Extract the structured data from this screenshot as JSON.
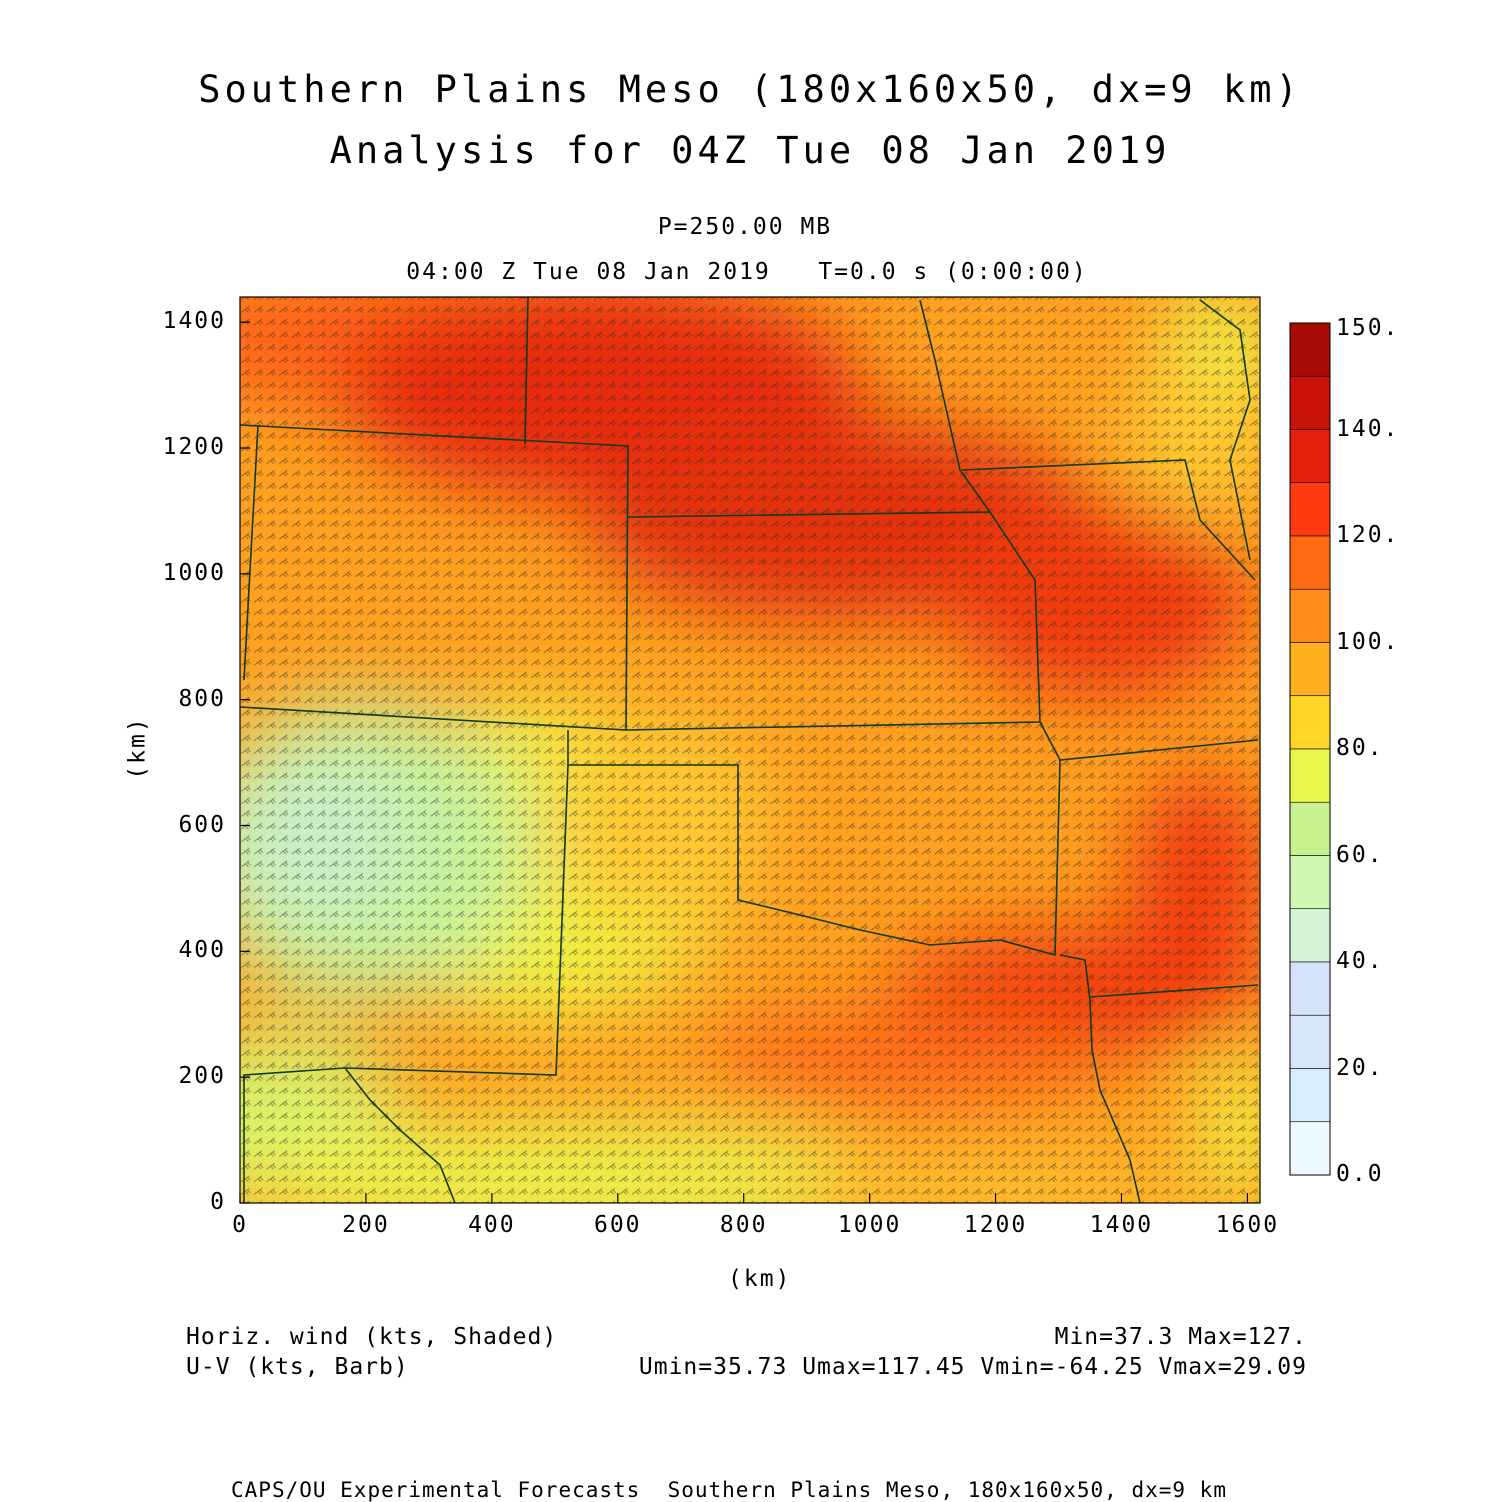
{
  "title": {
    "line1": "Southern Plains Meso (180x160x50, dx=9 km)",
    "line2": "Analysis for 04Z Tue 08 Jan 2019"
  },
  "subtitle": {
    "level": "P=250.00 MB",
    "time": "04:00 Z Tue 08 Jan 2019   T=0.0 s (0:00:00)"
  },
  "axes": {
    "xlabel": "(km)",
    "ylabel": "(km)",
    "x_ticks": [
      "0",
      "200",
      "400",
      "600",
      "800",
      "1000",
      "1200",
      "1400",
      "1600"
    ],
    "y_ticks": [
      "0",
      "200",
      "400",
      "600",
      "800",
      "1000",
      "1200",
      "1400"
    ],
    "x_range": [
      0,
      1620
    ],
    "y_range": [
      0,
      1440
    ]
  },
  "colorbar": {
    "labels": [
      "0.0",
      "20.",
      "40.",
      "60.",
      "80.",
      "100.",
      "120.",
      "140.",
      "150."
    ],
    "colors": [
      "#eef8ff",
      "#d8eefe",
      "#d8e6fa",
      "#d4e2fb",
      "#d6f5d6",
      "#cdf7b0",
      "#c8f28f",
      "#e9f54a",
      "#ffd528",
      "#ffb01f",
      "#ff8c1a",
      "#ff6a12",
      "#ff3a10",
      "#e3200d",
      "#c9130a",
      "#a80a05"
    ]
  },
  "legend": {
    "shaded": "Horiz. wind (kts, Shaded)",
    "barb": "U-V (kts, Barb)",
    "minmax": "Min=37.3 Max=127.",
    "uv": "Umin=35.73 Umax=117.45 Vmin=-64.25 Vmax=29.09"
  },
  "credit": "CAPS/OU Experimental Forecasts  Southern Plains Meso, 180x160x50, dx=9 km"
}
